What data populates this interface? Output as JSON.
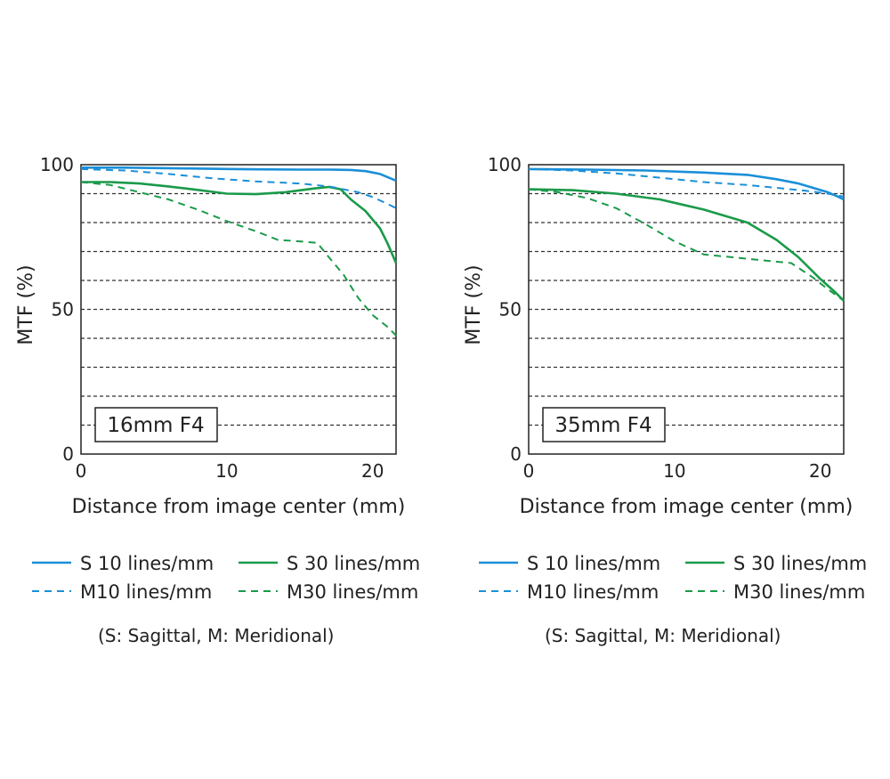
{
  "chart_data": [
    {
      "type": "line",
      "label_box": "16mm F4",
      "xlabel": "Distance from image center (mm)",
      "ylabel": "MTF (%)",
      "xlim": [
        0,
        21.6
      ],
      "ylim": [
        0,
        100
      ],
      "xticks": [
        "0",
        "10",
        "20"
      ],
      "xtick_values": [
        0,
        10,
        20
      ],
      "yticks": [
        "0",
        "50",
        "100"
      ],
      "ytick_values": [
        0,
        50,
        100
      ],
      "grid": "horizontal dashed every 10",
      "series": [
        {
          "name": "S 10 lines/mm",
          "color": "#1a8fd8",
          "dash": false,
          "x": [
            0,
            3,
            6,
            9,
            12,
            15,
            17,
            18.5,
            19.5,
            20.5,
            21.6
          ],
          "y": [
            99,
            99,
            98.8,
            98.6,
            98.4,
            98.3,
            98.3,
            98.2,
            97.8,
            96.8,
            94.5
          ]
        },
        {
          "name": "S 30 lines/mm",
          "color": "#1a9a4a",
          "dash": false,
          "x": [
            0,
            2,
            4,
            6,
            8,
            10,
            12,
            14,
            16,
            17,
            17.8,
            18.5,
            19.5,
            20.5,
            21,
            21.6
          ],
          "y": [
            94,
            94,
            93.5,
            92.5,
            91.3,
            90,
            89.8,
            90.5,
            91.8,
            92.3,
            91.5,
            88,
            84,
            78,
            73,
            66
          ]
        },
        {
          "name": "M10 lines/mm",
          "color": "#1a8fd8",
          "dash": true,
          "x": [
            0,
            3,
            6,
            9,
            12,
            15,
            17,
            19,
            20,
            21,
            21.6
          ],
          "y": [
            98.5,
            98,
            96.8,
            95.3,
            94.2,
            93.5,
            92.5,
            90.5,
            88.8,
            86.5,
            85
          ]
        },
        {
          "name": "M30 lines/mm",
          "color": "#1a9a4a",
          "dash": true,
          "x": [
            0,
            2,
            4,
            6,
            8,
            10,
            12,
            13.5,
            15,
            16.2,
            17,
            18,
            19,
            20,
            21,
            21.6
          ],
          "y": [
            94,
            93,
            90.5,
            88,
            84.5,
            80.5,
            77,
            74,
            73.5,
            73,
            68,
            62,
            54,
            48,
            44,
            41
          ]
        }
      ]
    },
    {
      "type": "line",
      "label_box": "35mm F4",
      "xlabel": "Distance from image center (mm)",
      "ylabel": "MTF (%)",
      "xlim": [
        0,
        21.6
      ],
      "ylim": [
        0,
        100
      ],
      "xticks": [
        "0",
        "10",
        "20"
      ],
      "xtick_values": [
        0,
        10,
        20
      ],
      "yticks": [
        "0",
        "50",
        "100"
      ],
      "ytick_values": [
        0,
        50,
        100
      ],
      "grid": "horizontal dashed every 10",
      "series": [
        {
          "name": "S 10 lines/mm",
          "color": "#1a8fd8",
          "dash": false,
          "x": [
            0,
            4,
            8,
            12,
            15,
            17,
            18.5,
            19.5,
            20.5,
            21.2,
            21.6
          ],
          "y": [
            98.5,
            98.3,
            98,
            97.3,
            96.5,
            95,
            93.5,
            92,
            90.5,
            89,
            88
          ]
        },
        {
          "name": "S 30 lines/mm",
          "color": "#1a9a4a",
          "dash": false,
          "x": [
            0,
            3,
            6,
            9,
            12,
            15,
            17,
            18.5,
            20,
            21,
            21.6
          ],
          "y": [
            91.5,
            91.2,
            90,
            88,
            84.5,
            80,
            74,
            68,
            60.5,
            56,
            53
          ]
        },
        {
          "name": "M10 lines/mm",
          "color": "#1a8fd8",
          "dash": true,
          "x": [
            0,
            3,
            6,
            9,
            12,
            15,
            17,
            19,
            20.5,
            21.6
          ],
          "y": [
            98.5,
            98,
            97,
            95.5,
            94,
            93,
            92,
            91,
            90,
            89
          ]
        },
        {
          "name": "M30 lines/mm",
          "color": "#1a9a4a",
          "dash": true,
          "x": [
            0,
            2,
            4,
            6,
            8,
            10,
            12,
            14,
            16,
            18,
            19.5,
            20.5,
            21.6
          ],
          "y": [
            91.5,
            90.5,
            88.5,
            85,
            79.5,
            73.5,
            69,
            68,
            67,
            66,
            61,
            57,
            53
          ]
        }
      ]
    }
  ],
  "legend": {
    "s10": "S 10 lines/mm",
    "s30": "S 30 lines/mm",
    "m10": "M10 lines/mm",
    "m30": "M30 lines/mm",
    "note": "(S: Sagittal, M: Meridional)"
  },
  "colors": {
    "blue": "#1a8fd8",
    "green": "#1a9a4a",
    "grid": "#333333"
  }
}
